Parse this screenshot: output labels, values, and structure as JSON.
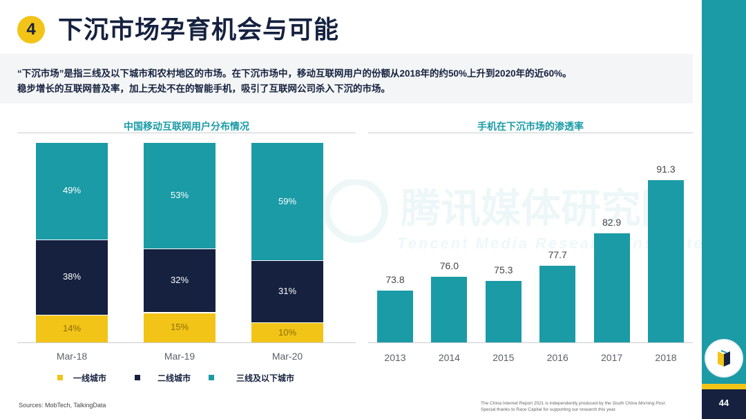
{
  "slide": {
    "badge": "4",
    "title": "下沉市场孕育机会与可能",
    "intro_line1": "“下沉市场”是指三线及以下城市和农村地区的市场。在下沉市场中，移动互联网用户的份额从2018年的约50%上升到2020年的近60%。",
    "intro_line2": "稳步增长的互联网普及率，加上无处不在的智能手机，吸引了互联网公司杀入下沉的市场。",
    "sources": "Sources: MobTech, TalkingData",
    "credit_line1_pre": "The China Internet Report 2021 is independently produced by the ",
    "credit_line1_em": "South China Morning Post",
    "credit_line1_post": ".",
    "credit_line2": "Special thanks to Race Capital for supporting our research this year.",
    "page_number": "44",
    "watermark_cn": "腾讯媒体研究院",
    "watermark_en": "Tencent Media Research Institute"
  },
  "colors": {
    "teal": "#1a9ba6",
    "navy": "#15213f",
    "yellow": "#f2c418"
  },
  "chart_data": [
    {
      "type": "bar",
      "stacked": true,
      "percent": true,
      "title": "中国移动互联网用户分布情况",
      "categories": [
        "Mar-18",
        "Mar-19",
        "Mar-20"
      ],
      "series": [
        {
          "name": "一线城市",
          "values": [
            14,
            15,
            10
          ],
          "labels": [
            "14%",
            "15%",
            "10%"
          ]
        },
        {
          "name": "二线城市",
          "values": [
            38,
            32,
            31
          ],
          "labels": [
            "38%",
            "32%",
            "31%"
          ]
        },
        {
          "name": "三线及以下城市",
          "values": [
            49,
            53,
            59
          ],
          "labels": [
            "49%",
            "53%",
            "59%"
          ]
        }
      ],
      "legend": [
        "一线城市",
        "二线城市",
        "三线及以下城市"
      ]
    },
    {
      "type": "bar",
      "title": "手机在下沉市场的渗透率",
      "categories": [
        "2013",
        "2014",
        "2015",
        "2016",
        "2017",
        "2018"
      ],
      "values": [
        73.8,
        76.0,
        75.3,
        77.7,
        82.9,
        91.3
      ],
      "labels": [
        "73.8",
        "76.0",
        "75.3",
        "77.7",
        "82.9",
        "91.3"
      ],
      "ylim": [
        65.6,
        98
      ]
    }
  ]
}
